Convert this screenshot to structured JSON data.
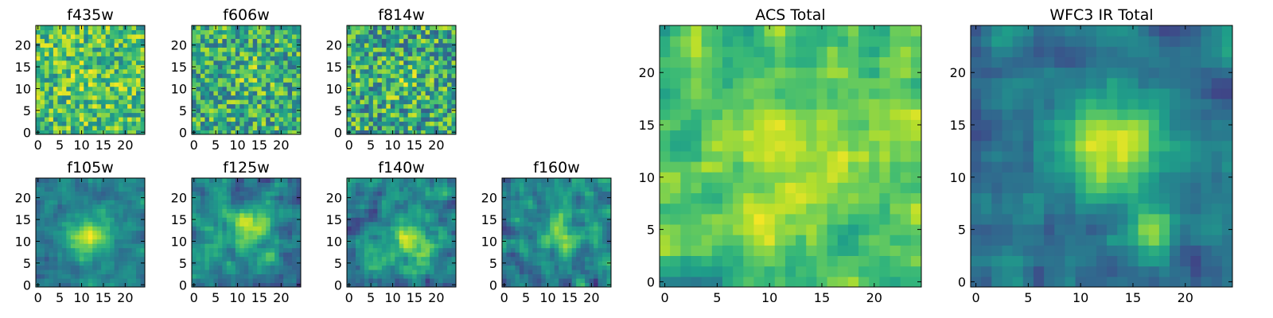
{
  "chart_data": [
    {
      "type": "heatmap",
      "title": "f435w",
      "xlim": [
        -0.5,
        24.5
      ],
      "ylim": [
        -0.5,
        24.5
      ],
      "xticks": [
        0,
        5,
        10,
        15,
        20
      ],
      "yticks": [
        0,
        5,
        10,
        15,
        20
      ],
      "grid_size": [
        25,
        25
      ],
      "colormap": "viridis",
      "image_structure": "uniform noise",
      "noise_seed": 11,
      "noise_level": 0.55,
      "source_x": 12,
      "source_y": 12,
      "source_width": 4,
      "source_strength": 0.05,
      "mean_intensity": 0.7,
      "min_value": 0,
      "max_value": 1
    },
    {
      "type": "heatmap",
      "title": "f606w",
      "xlim": [
        -0.5,
        24.5
      ],
      "ylim": [
        -0.5,
        24.5
      ],
      "xticks": [
        0,
        5,
        10,
        15,
        20
      ],
      "yticks": [
        0,
        5,
        10,
        15,
        20
      ],
      "grid_size": [
        25,
        25
      ],
      "colormap": "viridis",
      "image_structure": "noise with faint central source",
      "noise_seed": 23,
      "noise_level": 0.6,
      "source_x": 13,
      "source_y": 13,
      "source_width": 2.5,
      "source_strength": 0.15,
      "mean_intensity": 0.62,
      "min_value": 0,
      "max_value": 1
    },
    {
      "type": "heatmap",
      "title": "f814w",
      "xlim": [
        -0.5,
        24.5
      ],
      "ylim": [
        -0.5,
        24.5
      ],
      "xticks": [
        0,
        5,
        10,
        15,
        20
      ],
      "yticks": [
        0,
        5,
        10,
        15,
        20
      ],
      "grid_size": [
        25,
        25
      ],
      "colormap": "viridis",
      "image_structure": "noise",
      "noise_seed": 37,
      "noise_level": 0.65,
      "source_x": 13,
      "source_y": 11,
      "source_width": 3,
      "source_strength": 0.12,
      "mean_intensity": 0.6,
      "min_value": 0,
      "max_value": 1
    },
    {
      "type": "heatmap",
      "title": "f105w",
      "xlim": [
        -0.5,
        24.5
      ],
      "ylim": [
        -0.5,
        24.5
      ],
      "xticks": [
        0,
        5,
        10,
        15,
        20
      ],
      "yticks": [
        0,
        5,
        10,
        15,
        20
      ],
      "grid_size": [
        25,
        25
      ],
      "colormap": "viridis",
      "image_structure": "smooth with central source",
      "noise_seed": 41,
      "noise_level": 0.3,
      "source_x": 12,
      "source_y": 11,
      "source_width": 3.5,
      "source_strength": 0.5,
      "mean_intensity": 0.42,
      "min_value": 0,
      "max_value": 1
    },
    {
      "type": "heatmap",
      "title": "f125w",
      "xlim": [
        -0.5,
        24.5
      ],
      "ylim": [
        -0.5,
        24.5
      ],
      "xticks": [
        0,
        5,
        10,
        15,
        20
      ],
      "yticks": [
        0,
        5,
        10,
        15,
        20
      ],
      "grid_size": [
        25,
        25
      ],
      "colormap": "viridis",
      "image_structure": "smooth with central source",
      "noise_seed": 53,
      "noise_level": 0.4,
      "source_x": 13,
      "source_y": 13,
      "source_width": 3.5,
      "source_strength": 0.4,
      "mean_intensity": 0.45,
      "min_value": 0,
      "max_value": 1
    },
    {
      "type": "heatmap",
      "title": "f140w",
      "xlim": [
        -0.5,
        24.5
      ],
      "ylim": [
        -0.5,
        24.5
      ],
      "xticks": [
        0,
        5,
        10,
        15,
        20
      ],
      "yticks": [
        0,
        5,
        10,
        15,
        20
      ],
      "grid_size": [
        25,
        25
      ],
      "colormap": "viridis",
      "image_structure": "smooth with central source",
      "noise_seed": 67,
      "noise_level": 0.45,
      "source_x": 14,
      "source_y": 10,
      "source_width": 4,
      "source_strength": 0.35,
      "mean_intensity": 0.45,
      "min_value": 0,
      "max_value": 1
    },
    {
      "type": "heatmap",
      "title": "f160w",
      "xlim": [
        -0.5,
        24.5
      ],
      "ylim": [
        -0.5,
        24.5
      ],
      "xticks": [
        0,
        5,
        10,
        15,
        20
      ],
      "yticks": [
        0,
        5,
        10,
        15,
        20
      ],
      "grid_size": [
        25,
        25
      ],
      "colormap": "viridis",
      "image_structure": "smooth with central source",
      "noise_seed": 79,
      "noise_level": 0.45,
      "source_x": 13,
      "source_y": 12,
      "source_width": 3.5,
      "source_strength": 0.35,
      "mean_intensity": 0.45,
      "min_value": 0,
      "max_value": 1
    },
    {
      "type": "heatmap",
      "title": "ACS Total",
      "xlim": [
        -0.5,
        24.5
      ],
      "ylim": [
        -0.5,
        24.5
      ],
      "xticks": [
        0,
        5,
        10,
        15,
        20
      ],
      "yticks": [
        0,
        5,
        10,
        15,
        20
      ],
      "grid_size": [
        25,
        25
      ],
      "colormap": "viridis",
      "image_structure": "noise with faint central source",
      "noise_seed": 97,
      "noise_level": 0.35,
      "source_x": 12,
      "source_y": 12,
      "source_width": 4,
      "source_strength": 0.15,
      "mean_intensity": 0.72,
      "min_value": 0,
      "max_value": 1
    },
    {
      "type": "heatmap",
      "title": "WFC3 IR Total",
      "xlim": [
        -0.5,
        24.5
      ],
      "ylim": [
        -0.5,
        24.5
      ],
      "xticks": [
        0,
        5,
        10,
        15,
        20
      ],
      "yticks": [
        0,
        5,
        10,
        15,
        20
      ],
      "grid_size": [
        25,
        25
      ],
      "colormap": "viridis",
      "image_structure": "central source with secondary peak",
      "noise_seed": 113,
      "noise_level": 0.3,
      "source_x": 13,
      "source_y": 13,
      "source_width": 3.5,
      "source_strength": 0.55,
      "secondary_x": 17,
      "secondary_y": 5,
      "secondary_width": 1.5,
      "secondary_strength": 0.45,
      "mean_intensity": 0.38,
      "min_value": 0,
      "max_value": 1
    }
  ]
}
